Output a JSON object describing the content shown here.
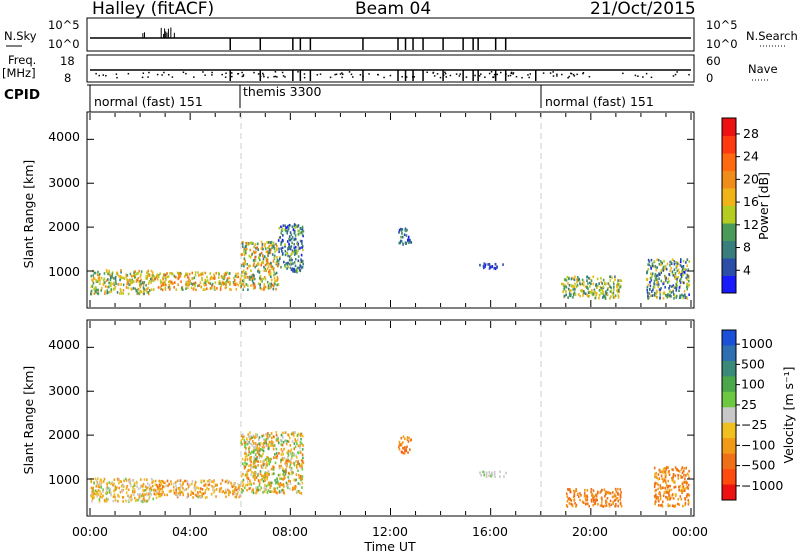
{
  "header": {
    "station": "Halley (fitACF)",
    "beam": "Beam 04",
    "date": "21/Oct/2015"
  },
  "summary_panels": {
    "nsky_label": "N.Sky",
    "nsky_ticks": [
      "10^5",
      "10^0"
    ],
    "nsearch_label": "N.Search",
    "nsearch_ticks": [
      "10^5",
      "10^0"
    ],
    "freq_label": "Freq.",
    "freq_unit": "[MHz]",
    "freq_ticks": [
      "18",
      "8"
    ],
    "nave_label": "Nave",
    "nave_ticks": [
      "60",
      "0"
    ],
    "cpid_label": "CPID",
    "cpid_segments": [
      {
        "label": "normal (fast) 151",
        "start_h": 0,
        "end_h": 6
      },
      {
        "label": "themis 3300",
        "start_h": 6,
        "end_h": 18
      },
      {
        "label": "normal (fast) 151",
        "start_h": 18,
        "end_h": 24
      }
    ],
    "nsky_dips_h": [
      5.6,
      6.8,
      8.1,
      8.4,
      8.8,
      10.9,
      12.3,
      12.6,
      12.9,
      13.3,
      14.1,
      14.9,
      15.3,
      15.5,
      16.2,
      16.6
    ],
    "freq_dips_h": [
      5.6,
      6.8,
      8.1,
      8.4,
      8.8,
      10.9,
      12.3,
      12.6,
      12.9,
      13.3,
      14.1,
      14.9,
      15.3,
      15.5,
      16.2,
      16.6,
      17.8
    ]
  },
  "axes": {
    "x_label": "Time UT",
    "x_ticks": [
      "00:00",
      "04:00",
      "08:00",
      "12:00",
      "16:00",
      "20:00",
      "00:00"
    ],
    "y_label": "Slant Range [km]",
    "y_ticks": [
      "1000",
      "2000",
      "3000",
      "4000"
    ]
  },
  "colorbars": {
    "power": {
      "label": "Power [dB]",
      "ticks": [
        "4",
        "8",
        "12",
        "16",
        "20",
        "24",
        "28"
      ],
      "colors": [
        "#1a1aff",
        "#2b4fa8",
        "#3a7d7d",
        "#4a9a5a",
        "#b5cc20",
        "#f0b418",
        "#f08c1a",
        "#ff6a10",
        "#ff3a10",
        "#ee1111"
      ]
    },
    "velocity": {
      "label": "Velocity [m s⁻¹]",
      "ticks": [
        "1000",
        "500",
        "100",
        "25",
        "−25",
        "−100",
        "−500",
        "−1000"
      ],
      "colors": [
        "#1a4fd8",
        "#2d6fb0",
        "#3a8a7a",
        "#4aa74a",
        "#6cc840",
        "#c8c8c8",
        "#f0c020",
        "#f09a18",
        "#f07018",
        "#ff4a10",
        "#ee1111"
      ]
    }
  },
  "chart_data": {
    "type": "heatmap",
    "x_range_hours": [
      0,
      24
    ],
    "y_range_km": [
      180,
      4600
    ],
    "scatter_regions_power": [
      {
        "t0": 0.0,
        "t1": 2.5,
        "r0": 500,
        "r1": 1050,
        "v": [
          10,
          22
        ]
      },
      {
        "t0": 2.5,
        "t1": 6.0,
        "r0": 600,
        "r1": 1000,
        "v": [
          12,
          26
        ]
      },
      {
        "t0": 6.0,
        "t1": 7.5,
        "r0": 600,
        "r1": 1700,
        "v": [
          8,
          24
        ]
      },
      {
        "t0": 7.5,
        "t1": 8.5,
        "r0": 1000,
        "r1": 2100,
        "v": [
          4,
          16
        ]
      },
      {
        "t0": 12.3,
        "t1": 12.8,
        "r0": 1600,
        "r1": 2000,
        "v": [
          4,
          12
        ]
      },
      {
        "t0": 15.5,
        "t1": 16.6,
        "r0": 1080,
        "r1": 1200,
        "v": [
          4,
          8
        ]
      },
      {
        "t0": 18.8,
        "t1": 21.2,
        "r0": 400,
        "r1": 900,
        "v": [
          8,
          20
        ]
      },
      {
        "t0": 22.2,
        "t1": 23.9,
        "r0": 400,
        "r1": 1300,
        "v": [
          4,
          20
        ]
      }
    ],
    "scatter_regions_velocity": [
      {
        "t0": 0.0,
        "t1": 2.5,
        "r0": 500,
        "r1": 1050,
        "v": [
          -200,
          50
        ]
      },
      {
        "t0": 2.5,
        "t1": 6.0,
        "r0": 600,
        "r1": 1000,
        "v": [
          -300,
          30
        ]
      },
      {
        "t0": 6.0,
        "t1": 8.5,
        "r0": 700,
        "r1": 2100,
        "v": [
          -300,
          150
        ]
      },
      {
        "t0": 12.3,
        "t1": 12.8,
        "r0": 1600,
        "r1": 2000,
        "v": [
          -600,
          -100
        ]
      },
      {
        "t0": 15.5,
        "t1": 16.6,
        "r0": 1080,
        "r1": 1200,
        "v": [
          0,
          30
        ]
      },
      {
        "t0": 19.0,
        "t1": 21.2,
        "r0": 400,
        "r1": 800,
        "v": [
          -500,
          -100
        ]
      },
      {
        "t0": 22.5,
        "t1": 23.9,
        "r0": 400,
        "r1": 1300,
        "v": [
          -500,
          -50
        ]
      }
    ]
  }
}
